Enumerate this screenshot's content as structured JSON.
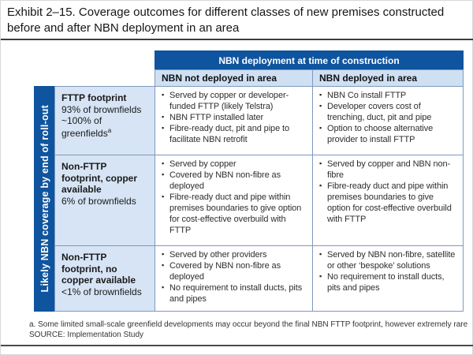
{
  "exhibit": {
    "title": "Exhibit 2–15. Coverage outcomes for different classes of new premises constructed before and after NBN deployment in an area"
  },
  "colors": {
    "dark_blue": "#0f549e",
    "column_header_blue": "#cfe0f3",
    "row_header_blue": "#d6e4f5",
    "cell_border": "#7f99bd"
  },
  "table": {
    "top_header": "NBN deployment at time of construction",
    "side_label": "Likely NBN coverage by end of roll-out",
    "column_headers": {
      "not_deployed": "NBN not deployed in area",
      "deployed": "NBN deployed in area"
    },
    "rows": [
      {
        "label": "FTTP footprint",
        "stat1": "93% of brownfields",
        "stat2": "~100% of greenfields",
        "stat2_sup": "a",
        "not_deployed": [
          "Served by copper or developer-funded FTTP (likely Telstra)",
          "NBN FTTP installed later",
          "Fibre-ready duct, pit and pipe to facilitate NBN retrofit"
        ],
        "deployed": [
          "NBN Co install FTTP",
          "Developer covers cost of trenching, duct, pit and pipe",
          "Option to choose alternative provider to install FTTP"
        ]
      },
      {
        "label": "Non-FTTP footprint, copper available",
        "stat1": "6% of brownfields",
        "not_deployed": [
          "Served by copper",
          "Covered by NBN non-fibre as deployed",
          "Fibre-ready duct and pipe within premises boundaries to give option for cost-effective overbuild with FTTP"
        ],
        "deployed": [
          "Served by copper and NBN non-fibre",
          "Fibre-ready duct and pipe within premises boundaries to give option for cost-effective overbuild with FTTP"
        ]
      },
      {
        "label": "Non-FTTP footprint, no copper available",
        "stat1": "<1% of brownfields",
        "not_deployed": [
          "Served by other providers",
          "Covered by NBN non-fibre as deployed",
          "No requirement to install ducts, pits and pipes"
        ],
        "deployed": [
          "Served by NBN non-fibre, satellite or other ‘bespoke’ solutions",
          "No requirement to install ducts, pits and pipes"
        ]
      }
    ]
  },
  "footer": {
    "footnote": "a. Some limited small-scale greenfield developments may occur beyond the final NBN FTTP footprint, however extremely rare",
    "source": "SOURCE: Implementation Study"
  }
}
